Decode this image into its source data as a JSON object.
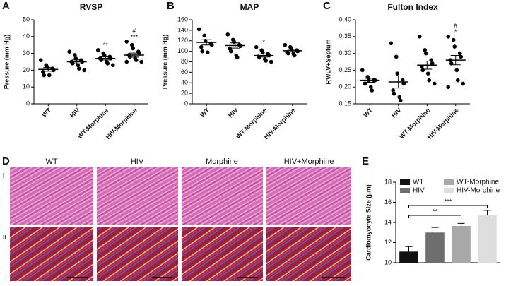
{
  "panel_labels": [
    "A",
    "B",
    "C",
    "D",
    "E"
  ],
  "histology": {
    "columns": [
      "WT",
      "HIV",
      "Morphine",
      "HIV+Morphine"
    ],
    "rows": [
      "i",
      "ii"
    ]
  },
  "chart_data": [
    {
      "type": "dot",
      "title": "RVSP",
      "y_label": "Pressure (mm Hg)",
      "categories": [
        "WT",
        "HIV",
        "WT-Morphine",
        "HIV-Morphine"
      ],
      "points": [
        [
          26,
          23,
          22,
          21,
          20,
          19,
          17,
          17
        ],
        [
          31,
          29,
          27,
          26,
          25,
          25,
          24,
          23,
          21,
          20
        ],
        [
          32,
          30,
          29,
          28,
          27,
          27,
          26,
          25,
          24,
          23
        ],
        [
          37,
          35,
          33,
          31,
          30,
          29,
          28,
          27,
          26,
          25,
          25
        ]
      ],
      "means": [
        20.5,
        25,
        27,
        29
      ],
      "sem": [
        1.1,
        1.1,
        0.9,
        1.2
      ],
      "annotations": [
        [],
        [],
        [
          "**"
        ],
        [
          "#",
          "***"
        ]
      ],
      "ylim": [
        0,
        50
      ],
      "yticks": [
        0,
        10,
        20,
        30,
        40,
        50
      ]
    },
    {
      "type": "dot",
      "title": "MAP",
      "y_label": "Pressure (mm Hg)",
      "categories": [
        "WT",
        "HIV",
        "WT-Morphine",
        "HIV-Morphine"
      ],
      "points": [
        [
          142,
          130,
          120,
          115,
          112,
          108,
          100,
          98
        ],
        [
          132,
          122,
          118,
          112,
          110,
          105,
          100,
          92,
          88
        ],
        [
          108,
          102,
          98,
          95,
          92,
          90,
          88,
          85,
          82,
          80
        ],
        [
          112,
          108,
          105,
          102,
          100,
          98,
          96,
          95,
          92
        ]
      ],
      "means": [
        117,
        111,
        92,
        101
      ],
      "sem": [
        5,
        5,
        3,
        2.5
      ],
      "annotations": [
        [],
        [],
        [
          "*"
        ],
        []
      ],
      "ylim": [
        0,
        160
      ],
      "yticks": [
        0,
        20,
        40,
        60,
        80,
        100,
        120,
        140,
        160
      ]
    },
    {
      "type": "dot",
      "title": "Fulton Index",
      "y_label": "RV/LV+Septum",
      "categories": [
        "WT",
        "HIV",
        "WT-Morphine",
        "HIV-Morphine"
      ],
      "points": [
        [
          0.25,
          0.23,
          0.22,
          0.22,
          0.22,
          0.21,
          0.21,
          0.2,
          0.19
        ],
        [
          0.33,
          0.29,
          0.24,
          0.22,
          0.21,
          0.19,
          0.18,
          0.17,
          0.16
        ],
        [
          0.35,
          0.31,
          0.3,
          0.28,
          0.27,
          0.26,
          0.25,
          0.24,
          0.22,
          0.21
        ],
        [
          0.35,
          0.34,
          0.32,
          0.3,
          0.29,
          0.28,
          0.27,
          0.25,
          0.22,
          0.21,
          0.2
        ]
      ],
      "means": [
        0.22,
        0.215,
        0.265,
        0.28
      ],
      "sem": [
        0.006,
        0.018,
        0.012,
        0.014
      ],
      "annotations": [
        [],
        [],
        [],
        [
          "#",
          "*"
        ]
      ],
      "ylim": [
        0.15,
        0.4
      ],
      "yticks": [
        {
          "value": 0.15,
          "label": "0.15"
        },
        {
          "value": 0.2,
          "label": "0.20"
        },
        {
          "value": 0.25,
          "label": "0.25"
        },
        {
          "value": 0.3,
          "label": "0.30"
        },
        {
          "value": 0.35,
          "label": "0.35"
        },
        {
          "value": 0.4,
          "label": "0.40"
        }
      ]
    },
    {
      "type": "bar",
      "y_label": "Cardiomyocyte Size (μm)",
      "series": [
        {
          "name": "WT",
          "color": "#111111",
          "values": [
            11.1
          ],
          "errors": [
            0.5
          ]
        },
        {
          "name": "HIV",
          "color": "#6e6e6e",
          "values": [
            13.0
          ],
          "errors": [
            0.5
          ]
        },
        {
          "name": "WT-Morphine",
          "color": "#a8a8a8",
          "values": [
            13.65
          ],
          "errors": [
            0.25
          ]
        },
        {
          "name": "HIV-Morphine",
          "color": "#dedede",
          "values": [
            14.7
          ],
          "errors": [
            0.5
          ]
        }
      ],
      "comparisons": [
        {
          "pair": [
            "WT",
            "WT-Morphine"
          ],
          "label": "**"
        },
        {
          "pair": [
            "WT",
            "HIV-Morphine"
          ],
          "label": "***"
        }
      ],
      "ylim": [
        10,
        18
      ],
      "yticks": [
        10,
        12,
        14,
        16,
        18
      ]
    }
  ]
}
